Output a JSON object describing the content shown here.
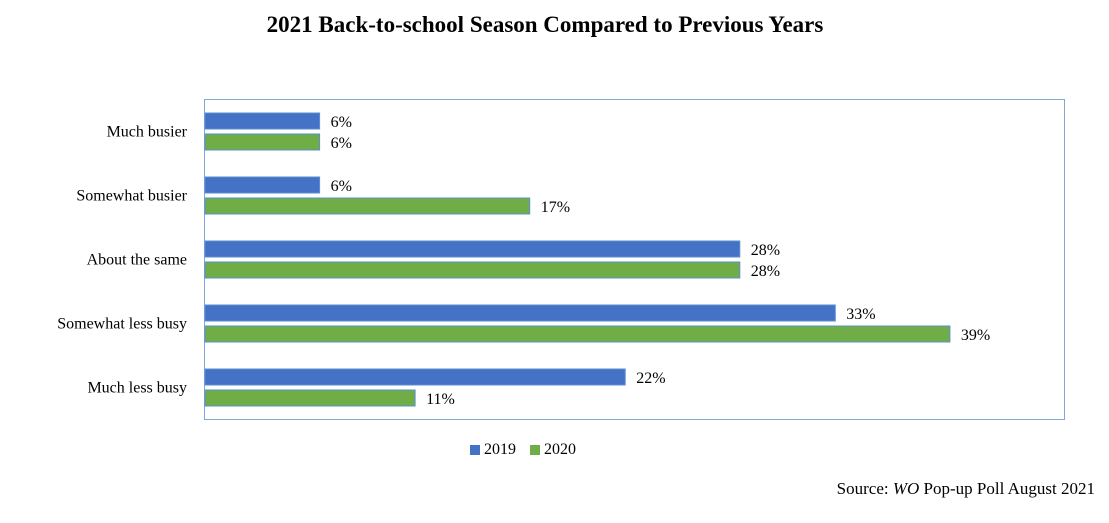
{
  "chart_data": {
    "type": "bar",
    "orientation": "horizontal",
    "title": "2021 Back-to-school Season Compared to Previous Years",
    "categories": [
      "Much busier",
      "Somewhat busier",
      "About the same",
      "Somewhat less busy",
      "Much less busy"
    ],
    "series": [
      {
        "name": "2019",
        "color": "#4472c4",
        "values": [
          6,
          6,
          28,
          33,
          22
        ],
        "labels": [
          "6%",
          "6%",
          "28%",
          "33%",
          "22%"
        ]
      },
      {
        "name": "2020",
        "color": "#70ad47",
        "values": [
          6,
          17,
          28,
          39,
          11
        ],
        "labels": [
          "6%",
          "17%",
          "28%",
          "39%",
          "11%"
        ]
      }
    ],
    "xlim": [
      0,
      42
    ],
    "grid": false,
    "legend_position": "bottom"
  },
  "source": {
    "prefix": "Source: ",
    "italic": "WO",
    "suffix": " Pop-up Poll August 2021"
  }
}
